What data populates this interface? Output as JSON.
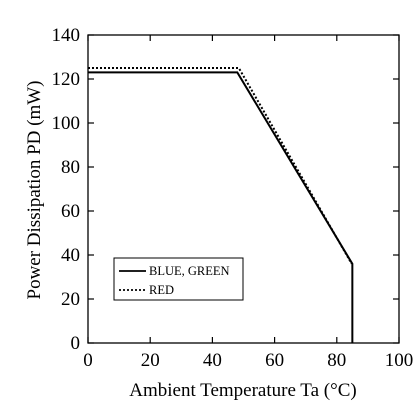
{
  "chart_data": {
    "type": "line",
    "xlabel": "Ambient Temperature Ta (°C)",
    "ylabel": "Power Dissipation PD (mW)",
    "xlim": [
      0,
      100
    ],
    "ylim": [
      0,
      140
    ],
    "xticks": [
      "0",
      "20",
      "40",
      "60",
      "80",
      "100"
    ],
    "yticks": [
      "0",
      "20",
      "40",
      "60",
      "80",
      "100",
      "120",
      "140"
    ],
    "grid": false,
    "legend_position": "bottom-left",
    "series": [
      {
        "name": "BLUE, GREEN",
        "style": "solid",
        "color": "#000000",
        "x": [
          0,
          48,
          85,
          85
        ],
        "y": [
          123,
          123,
          36,
          0
        ]
      },
      {
        "name": "RED",
        "style": "dotted",
        "color": "#000000",
        "x": [
          0,
          48.5,
          84.8
        ],
        "y": [
          125,
          125,
          36
        ]
      }
    ]
  }
}
